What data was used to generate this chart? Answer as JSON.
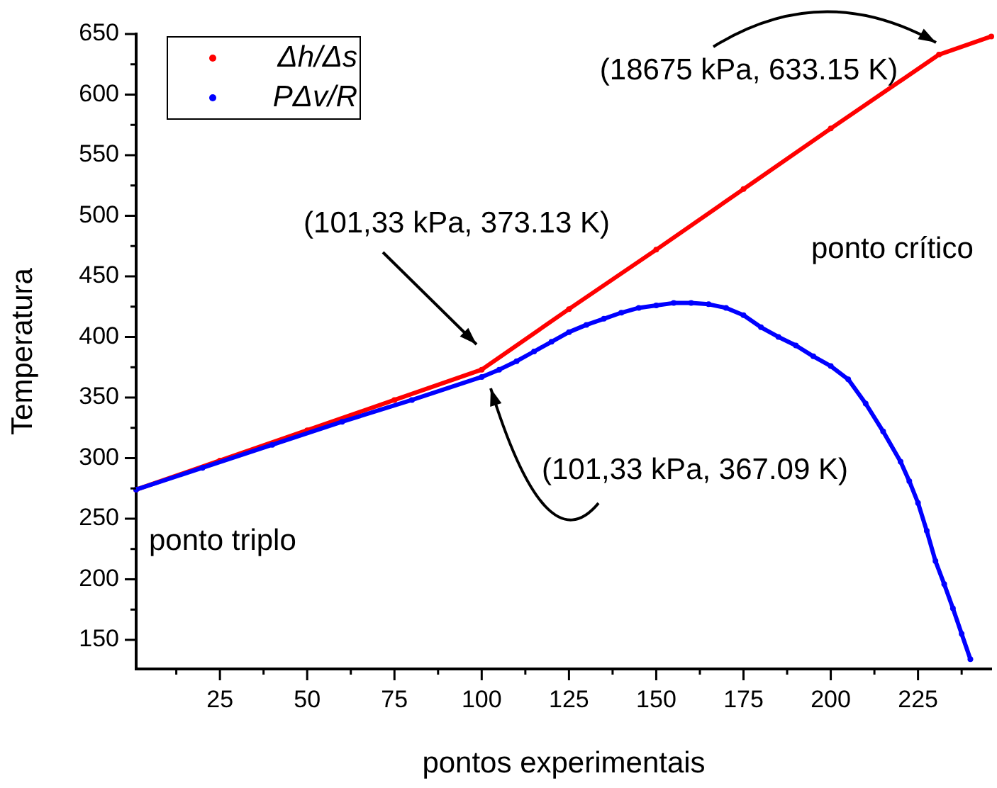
{
  "chart_data": {
    "type": "line",
    "xlabel": "pontos experimentais",
    "ylabel": "Temperatura",
    "xlim": [
      1,
      246
    ],
    "ylim": [
      126,
      650
    ],
    "xticks": [
      {
        "value": 12.5,
        "label": null
      },
      25,
      {
        "value": 37.5,
        "label": null
      },
      50,
      {
        "value": 62.5,
        "label": null
      },
      75,
      {
        "value": 87.5,
        "label": null
      },
      100,
      {
        "value": 112.5,
        "label": null
      },
      125,
      {
        "value": 137.5,
        "label": null
      },
      150,
      {
        "value": 162.5,
        "label": null
      },
      175,
      {
        "value": 187.5,
        "label": null
      },
      200,
      {
        "value": 212.5,
        "label": null
      },
      225,
      {
        "value": 237.5,
        "label": null
      }
    ],
    "yticks": [
      150,
      {
        "value": 175,
        "label": null
      },
      200,
      {
        "value": 225,
        "label": null
      },
      250,
      {
        "value": 275,
        "label": null
      },
      300,
      {
        "value": 325,
        "label": null
      },
      350,
      {
        "value": 375,
        "label": null
      },
      400,
      {
        "value": 425,
        "label": null
      },
      450,
      {
        "value": 475,
        "label": null
      },
      500,
      {
        "value": 525,
        "label": null
      },
      550,
      {
        "value": 575,
        "label": null
      },
      600,
      {
        "value": 625,
        "label": null
      },
      650
    ],
    "legend": "top left",
    "grid": false,
    "marker": "circle",
    "line_style": "solid",
    "series": [
      {
        "name": "Δh/Δs",
        "color": "#ff0000",
        "x": [
          1,
          25,
          50,
          75,
          100,
          125,
          150,
          175,
          200,
          231,
          246
        ],
        "values": [
          274,
          298,
          323,
          348,
          373,
          423,
          472,
          522,
          572,
          633,
          648
        ]
      },
      {
        "name": "PΔv/R",
        "color": "#0000ff",
        "x": [
          1,
          20,
          40,
          60,
          80,
          100,
          105,
          110,
          115,
          120,
          125,
          130,
          135,
          140,
          145,
          150,
          155,
          160,
          165,
          170,
          175,
          180,
          185,
          190,
          195,
          200,
          205,
          210,
          215,
          220,
          222.5,
          225,
          227.5,
          230,
          232.5,
          235,
          237.5,
          240
        ],
        "values": [
          274,
          292,
          311,
          330,
          348,
          367,
          373,
          380,
          388,
          396,
          404,
          410,
          415,
          420,
          424,
          426,
          428,
          428,
          427,
          424,
          418,
          408,
          400,
          393,
          384,
          376,
          365,
          345,
          322,
          297,
          281,
          263,
          240,
          215,
          196,
          176,
          155,
          134
        ]
      }
    ],
    "annotations": [
      "(101,33 kPa, 373.13 K)",
      "(101,33 kPa, 367.09 K)",
      "(18675 kPa, 633.15 K)",
      "ponto triplo",
      "ponto crítico"
    ]
  }
}
